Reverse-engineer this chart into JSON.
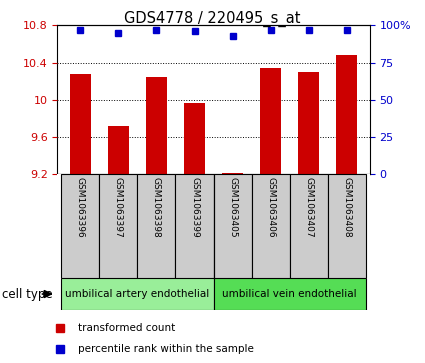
{
  "title": "GDS4778 / 220495_s_at",
  "samples": [
    "GSM1063396",
    "GSM1063397",
    "GSM1063398",
    "GSM1063399",
    "GSM1063405",
    "GSM1063406",
    "GSM1063407",
    "GSM1063408"
  ],
  "bar_values": [
    10.28,
    9.72,
    10.25,
    9.97,
    9.21,
    10.34,
    10.3,
    10.48
  ],
  "percentile_values": [
    97,
    95,
    97,
    96,
    93,
    97,
    97,
    97
  ],
  "ylim": [
    9.2,
    10.8
  ],
  "yticks": [
    9.2,
    9.6,
    10.0,
    10.4,
    10.8
  ],
  "ytick_labels": [
    "9.2",
    "9.6",
    "10",
    "10.4",
    "10.8"
  ],
  "right_yticks": [
    0,
    25,
    50,
    75,
    100
  ],
  "right_ylabels": [
    "0",
    "25",
    "50",
    "75",
    "100%"
  ],
  "bar_color": "#cc0000",
  "dot_color": "#0000cc",
  "bar_bottom": 9.2,
  "groups": [
    {
      "label": "umbilical artery endothelial",
      "start": 0,
      "end": 4,
      "color": "#99ee99"
    },
    {
      "label": "umbilical vein endothelial",
      "start": 4,
      "end": 8,
      "color": "#55dd55"
    }
  ],
  "cell_type_label": "cell type",
  "legend_items": [
    {
      "label": "transformed count",
      "color": "#cc0000"
    },
    {
      "label": "percentile rank within the sample",
      "color": "#0000cc"
    }
  ],
  "tick_color_left": "#cc0000",
  "tick_color_right": "#0000cc",
  "label_bg_color": "#cccccc",
  "figure_bg": "#ffffff"
}
